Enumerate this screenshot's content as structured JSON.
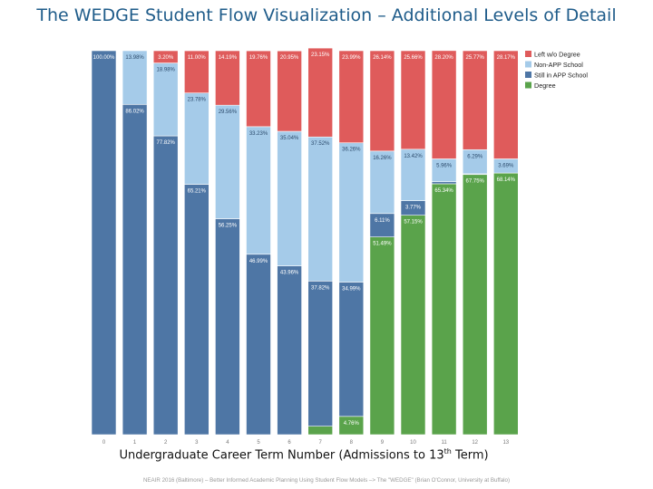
{
  "slide": {
    "title": "The WEDGE Student Flow Visualization – Additional Levels of Detail",
    "footer": "NEAIR 2016 (Baltimore) – Better Informed Academic Planning Using Student Flow Models –> The \"WEDGE\" (Brian O'Connor, University at Buffalo)"
  },
  "chart_data": {
    "type": "bar",
    "stacked": true,
    "normalized": true,
    "xlabel": {
      "prefix": "Undergraduate Career Term Number (Admissions to 13",
      "superscript": "th",
      "suffix": " Term)"
    },
    "categories": [
      "0",
      "1",
      "2",
      "3",
      "4",
      "5",
      "6",
      "7",
      "8",
      "9",
      "10",
      "11",
      "12",
      "13"
    ],
    "ylim": [
      0,
      100
    ],
    "legend_position": "top-right",
    "series": [
      {
        "name": "Degree",
        "color": "#5aa34b",
        "values": [
          0,
          0,
          0,
          0,
          0,
          0,
          0,
          2.2,
          4.76,
          51.49,
          57.15,
          65.34,
          67.75,
          68.14
        ],
        "labels": [
          "",
          "",
          "",
          "",
          "",
          "",
          "",
          "",
          "4.76%",
          "51.49%",
          "57.15%",
          "65.34%",
          "67.75%",
          "68.14%"
        ]
      },
      {
        "name": "Still in APP School",
        "color": "#4e76a5",
        "values": [
          100.0,
          86.02,
          77.82,
          65.21,
          56.25,
          46.99,
          43.96,
          37.82,
          34.99,
          6.11,
          3.77,
          0.53,
          0.19,
          0
        ],
        "labels": [
          "100.00%",
          "86.02%",
          "77.82%",
          "65.21%",
          "56.25%",
          "46.99%",
          "43.96%",
          "37.82%",
          "34.99%",
          "6.11%",
          "3.77%",
          "",
          "",
          ""
        ]
      },
      {
        "name": "Non-APP School",
        "color": "#a5cbe9",
        "values": [
          0,
          13.98,
          18.98,
          23.78,
          29.56,
          33.23,
          35.04,
          37.52,
          36.26,
          16.26,
          13.42,
          5.96,
          6.29,
          3.69
        ],
        "labels": [
          "",
          "13.98%",
          "18.98%",
          "23.78%",
          "29.56%",
          "33.23%",
          "35.04%",
          "37.52%",
          "36.26%",
          "16.26%",
          "13.42%",
          "5.96%",
          "6.29%",
          "3.69%"
        ]
      },
      {
        "name": "Left w/o Degree",
        "color": "#df5b5b",
        "values": [
          0,
          0,
          3.2,
          11.0,
          14.19,
          19.76,
          20.95,
          23.15,
          23.99,
          26.14,
          25.66,
          28.2,
          25.77,
          28.17
        ],
        "labels": [
          "",
          "",
          "3.20%",
          "11.00%",
          "14.19%",
          "19.76%",
          "20.95%",
          "23.15%",
          "23.99%",
          "26.14%",
          "25.66%",
          "28.20%",
          "25.77%",
          "28.17%"
        ]
      }
    ],
    "legend": [
      "Left w/o Degree",
      "Non-APP School",
      "Still in APP School",
      "Degree"
    ]
  }
}
